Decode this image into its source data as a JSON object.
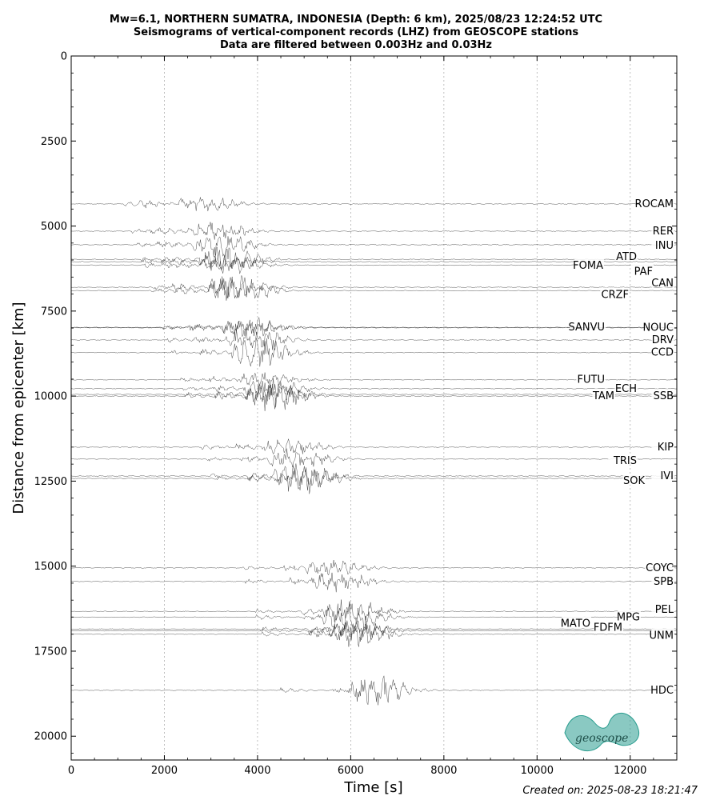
{
  "chart_data": {
    "type": "line",
    "title": "Mw=6.1, NORTHERN SUMATRA, INDONESIA (Depth: 6 km), 2025/08/23 12:24:52 UTC",
    "subtitle": "Seismograms of vertical-component records (LHZ) from GEOSCOPE stations",
    "subtitle2": "Data are filtered between 0.003Hz and 0.03Hz",
    "xlabel": "Time [s]",
    "ylabel": "Distance from epicenter [km]",
    "xlim": [
      0,
      13000
    ],
    "ylim": [
      20700,
      0
    ],
    "x_ticks": [
      "0",
      "2000",
      "4000",
      "6000",
      "8000",
      "10000",
      "12000"
    ],
    "x_tick_values": [
      0,
      2000,
      4000,
      6000,
      8000,
      10000,
      12000
    ],
    "y_ticks": [
      "0",
      "2500",
      "5000",
      "7500",
      "10000",
      "12500",
      "15000",
      "17500",
      "20000"
    ],
    "y_tick_values": [
      0,
      2500,
      5000,
      7500,
      10000,
      12500,
      15000,
      17500,
      20000
    ],
    "grid": "vertical-dotted",
    "stations": [
      {
        "name": "ROCAM",
        "distance": 4350
      },
      {
        "name": "RER",
        "distance": 5150
      },
      {
        "name": "INU",
        "distance": 5550
      },
      {
        "name": "ATD",
        "distance": 5980
      },
      {
        "name": "FOMA",
        "distance": 6050
      },
      {
        "name": "PAF",
        "distance": 6150
      },
      {
        "name": "CAN",
        "distance": 6800
      },
      {
        "name": "CRZF",
        "distance": 6900
      },
      {
        "name": "SANVU",
        "distance": 7980
      },
      {
        "name": "NOUC",
        "distance": 7990
      },
      {
        "name": "DRV",
        "distance": 8350
      },
      {
        "name": "CCD",
        "distance": 8720
      },
      {
        "name": "FUTU",
        "distance": 9520
      },
      {
        "name": "ECH",
        "distance": 9780
      },
      {
        "name": "TAM",
        "distance": 9950
      },
      {
        "name": "SSB",
        "distance": 10000
      },
      {
        "name": "KIP",
        "distance": 11500
      },
      {
        "name": "TRIS",
        "distance": 11850
      },
      {
        "name": "IVI",
        "distance": 12350
      },
      {
        "name": "SOK",
        "distance": 12420
      },
      {
        "name": "COYC",
        "distance": 15050
      },
      {
        "name": "SPB",
        "distance": 15450
      },
      {
        "name": "PEL",
        "distance": 16330
      },
      {
        "name": "MPG",
        "distance": 16500
      },
      {
        "name": "MATO",
        "distance": 16850
      },
      {
        "name": "FDFM",
        "distance": 16900
      },
      {
        "name": "UNM",
        "distance": 17000
      },
      {
        "name": "HDC",
        "distance": 18650
      }
    ]
  },
  "logo": {
    "text": "geoscope",
    "color": "#2a9d8f"
  },
  "footer": {
    "created": "Created on: 2025-08-23 18:21:47"
  }
}
